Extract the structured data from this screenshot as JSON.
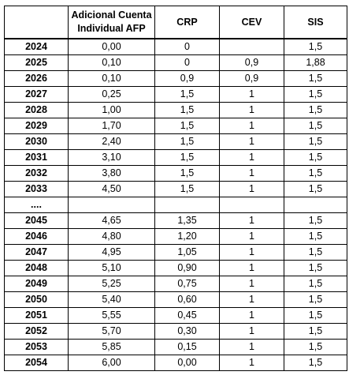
{
  "headers": {
    "year": "",
    "cuenta_line1": "Adicional Cuenta",
    "cuenta_line2": "Individual AFP",
    "crp": "CRP",
    "cev": "CEV",
    "sis": "SIS"
  },
  "rows": [
    {
      "year": "2024",
      "cuenta": "0,00",
      "crp": "0",
      "cev": "",
      "sis": "1,5"
    },
    {
      "year": "2025",
      "cuenta": "0,10",
      "crp": "0",
      "cev": "0,9",
      "sis": "1,88"
    },
    {
      "year": "2026",
      "cuenta": "0,10",
      "crp": "0,9",
      "cev": "0,9",
      "sis": "1,5"
    },
    {
      "year": "2027",
      "cuenta": "0,25",
      "crp": "1,5",
      "cev": "1",
      "sis": "1,5"
    },
    {
      "year": "2028",
      "cuenta": "1,00",
      "crp": "1,5",
      "cev": "1",
      "sis": "1,5"
    },
    {
      "year": "2029",
      "cuenta": "1,70",
      "crp": "1,5",
      "cev": "1",
      "sis": "1,5"
    },
    {
      "year": "2030",
      "cuenta": "2,40",
      "crp": "1,5",
      "cev": "1",
      "sis": "1,5"
    },
    {
      "year": "2031",
      "cuenta": "3,10",
      "crp": "1,5",
      "cev": "1",
      "sis": "1,5"
    },
    {
      "year": "2032",
      "cuenta": "3,80",
      "crp": "1,5",
      "cev": "1",
      "sis": "1,5"
    },
    {
      "year": "2033",
      "cuenta": "4,50",
      "crp": "1,5",
      "cev": "1",
      "sis": "1,5"
    },
    {
      "year": "....",
      "cuenta": "",
      "crp": "",
      "cev": "",
      "sis": ""
    },
    {
      "year": "2045",
      "cuenta": "4,65",
      "crp": "1,35",
      "cev": "1",
      "sis": "1,5"
    },
    {
      "year": "2046",
      "cuenta": "4,80",
      "crp": "1,20",
      "cev": "1",
      "sis": "1,5"
    },
    {
      "year": "2047",
      "cuenta": "4,95",
      "crp": "1,05",
      "cev": "1",
      "sis": "1,5"
    },
    {
      "year": "2048",
      "cuenta": "5,10",
      "crp": "0,90",
      "cev": "1",
      "sis": "1,5"
    },
    {
      "year": "2049",
      "cuenta": "5,25",
      "crp": "0,75",
      "cev": "1",
      "sis": "1,5"
    },
    {
      "year": "2050",
      "cuenta": "5,40",
      "crp": "0,60",
      "cev": "1",
      "sis": "1,5"
    },
    {
      "year": "2051",
      "cuenta": "5,55",
      "crp": "0,45",
      "cev": "1",
      "sis": "1,5"
    },
    {
      "year": "2052",
      "cuenta": "5,70",
      "crp": "0,30",
      "cev": "1",
      "sis": "1,5"
    },
    {
      "year": "2053",
      "cuenta": "5,85",
      "crp": "0,15",
      "cev": "1",
      "sis": "1,5"
    },
    {
      "year": "2054",
      "cuenta": "6,00",
      "crp": "0,00",
      "cev": "1",
      "sis": "1,5"
    }
  ]
}
